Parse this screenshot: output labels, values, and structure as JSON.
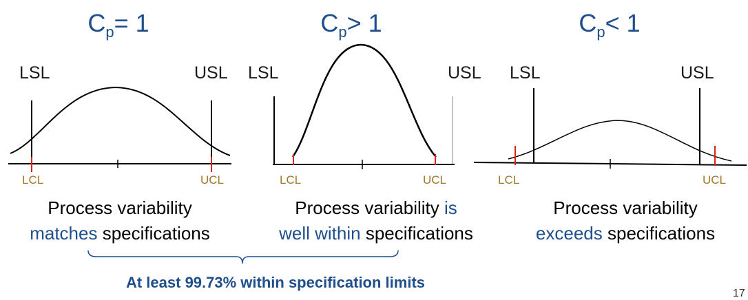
{
  "panels": [
    {
      "title_main": "C",
      "title_sub": "p",
      "title_rel": "= 1",
      "lsl": "LSL",
      "usl": "USL",
      "lcl": "LCL",
      "ucl": "UCL",
      "caption_line1": "Process variability",
      "caption_line2_blue": "matches",
      "caption_line2_rest": " specifications"
    },
    {
      "title_main": "C",
      "title_sub": "p",
      "title_rel": "> 1",
      "lsl": "LSL",
      "usl": "USL",
      "lcl": "LCL",
      "ucl": "UCL",
      "caption_line1_black": "Process variability ",
      "caption_line1_blue": "is",
      "caption_line2_blue": "well within",
      "caption_line2_rest": " specifications"
    },
    {
      "title_main": "C",
      "title_sub": "p",
      "title_rel": "< 1",
      "lsl": "LSL",
      "usl": "USL",
      "lcl": "LCL",
      "ucl": "UCL",
      "caption_line1": "Process variability",
      "caption_line2_blue": "exceeds",
      "caption_line2_rest": " specifications"
    }
  ],
  "footer": "At least 99.73% within specification limits",
  "page_number": "17",
  "colors": {
    "title_blue": "#1f4e8c",
    "control_limit_text": "#a0762a",
    "control_limit_tick": "#e0201a",
    "curve": "#000000"
  }
}
